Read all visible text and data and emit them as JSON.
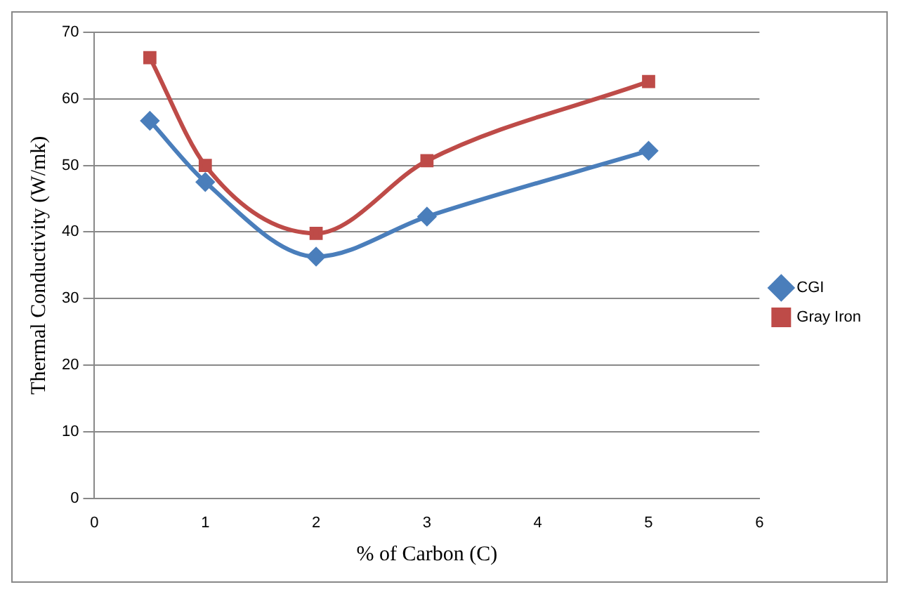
{
  "chart_data": {
    "type": "line",
    "xlabel": "% of Carbon (C)",
    "ylabel": "Thermal Conductivity (W/mk)",
    "x": [
      0.5,
      1,
      2,
      3,
      5
    ],
    "xlim": [
      0,
      6
    ],
    "xticks": [
      0,
      1,
      2,
      3,
      4,
      5,
      6
    ],
    "ylim": [
      0,
      70
    ],
    "yticks": [
      0,
      10,
      20,
      30,
      40,
      50,
      60,
      70
    ],
    "grid": "y",
    "legend": "right",
    "series": [
      {
        "name": "CGI",
        "color": "#4a7ebb",
        "marker": "diamond",
        "values": [
          56.7,
          47.5,
          36.3,
          42.3,
          52.2
        ]
      },
      {
        "name": "Gray Iron",
        "color": "#be4b48",
        "marker": "square",
        "values": [
          66.2,
          50,
          39.8,
          50.7,
          62.6
        ]
      }
    ]
  }
}
